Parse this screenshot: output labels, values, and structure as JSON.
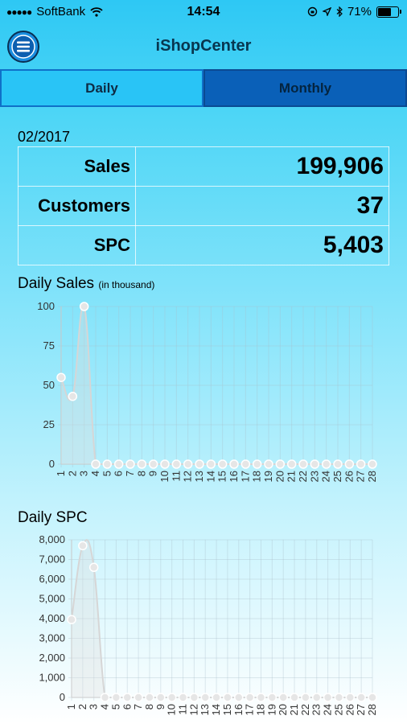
{
  "status_bar": {
    "carrier": "SoftBank",
    "time": "14:54",
    "battery": "71%",
    "battery_level": 0.71
  },
  "header": {
    "title": "iShopCenter"
  },
  "tabs": [
    {
      "label": "Daily",
      "active": true
    },
    {
      "label": "Monthly",
      "active": false
    }
  ],
  "summary": {
    "period": "02/2017",
    "rows": [
      {
        "label": "Sales",
        "value": "199,906"
      },
      {
        "label": "Customers",
        "value": "37"
      },
      {
        "label": "SPC",
        "value": "5,403"
      }
    ]
  },
  "sales_section": {
    "title": "Daily Sales",
    "note": "(in thousand)"
  },
  "spc_section": {
    "title": "Daily SPC"
  },
  "colors": {
    "tab_active": "#29c4f6",
    "tab_inactive": "#0a60b8",
    "header_title": "#08364f",
    "gradient_top": "#2ec8f4"
  },
  "chart_data": [
    {
      "type": "line",
      "title": "Daily Sales",
      "x": [
        "1",
        "2",
        "3",
        "4",
        "5",
        "6",
        "7",
        "8",
        "9",
        "10",
        "11",
        "12",
        "13",
        "14",
        "15",
        "16",
        "17",
        "18",
        "19",
        "20",
        "21",
        "22",
        "23",
        "24",
        "25",
        "26",
        "27",
        "28"
      ],
      "values": [
        55,
        43,
        100,
        0,
        0,
        0,
        0,
        0,
        0,
        0,
        0,
        0,
        0,
        0,
        0,
        0,
        0,
        0,
        0,
        0,
        0,
        0,
        0,
        0,
        0,
        0,
        0,
        0
      ],
      "ylim": [
        0,
        100
      ],
      "yticks": [
        "0",
        "25",
        "50",
        "75",
        "100"
      ],
      "grid": true
    },
    {
      "type": "line",
      "title": "Daily SPC",
      "x": [
        "1",
        "2",
        "3",
        "4",
        "5",
        "6",
        "7",
        "8",
        "9",
        "10",
        "11",
        "12",
        "13",
        "14",
        "15",
        "16",
        "17",
        "18",
        "19",
        "20",
        "21",
        "22",
        "23",
        "24",
        "25",
        "26",
        "27",
        "28"
      ],
      "values": [
        3950,
        7700,
        6600,
        0,
        0,
        0,
        0,
        0,
        0,
        0,
        0,
        0,
        0,
        0,
        0,
        0,
        0,
        0,
        0,
        0,
        0,
        0,
        0,
        0,
        0,
        0,
        0,
        0
      ],
      "ylim": [
        0,
        8000
      ],
      "yticks": [
        "0",
        "1,000",
        "2,000",
        "3,000",
        "4,000",
        "5,000",
        "6,000",
        "7,000",
        "8,000"
      ],
      "grid": true
    }
  ]
}
